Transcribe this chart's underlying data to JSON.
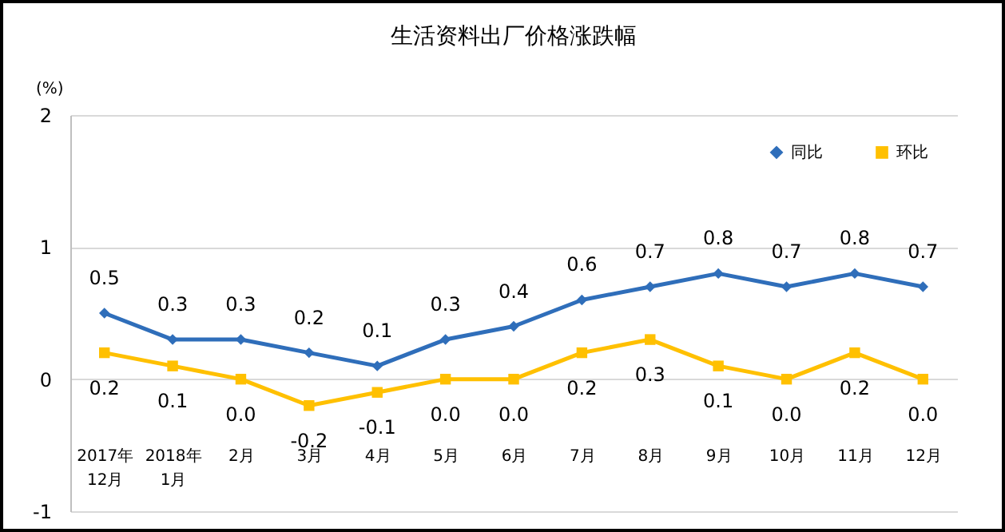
{
  "chart_data": {
    "type": "line",
    "title": "生活资料出厂价格涨跌幅",
    "ylabel": "(%)",
    "categories": [
      "2017年\n12月",
      "2018年\n1月",
      "2月",
      "3月",
      "4月",
      "5月",
      "6月",
      "7月",
      "8月",
      "9月",
      "10月",
      "11月",
      "12月"
    ],
    "series": [
      {
        "name": "同比",
        "color": "#2f6eba",
        "marker": "diamond",
        "values": [
          0.5,
          0.3,
          0.3,
          0.2,
          0.1,
          0.3,
          0.4,
          0.6,
          0.7,
          0.8,
          0.7,
          0.8,
          0.7
        ],
        "value_labels": [
          "0.5",
          "0.3",
          "0.3",
          "0.2",
          "0.1",
          "0.3",
          "0.4",
          "0.6",
          "0.7",
          "0.8",
          "0.7",
          "0.8",
          "0.7"
        ]
      },
      {
        "name": "环比",
        "color": "#ffc000",
        "marker": "square",
        "values": [
          0.2,
          0.1,
          0.0,
          -0.2,
          -0.1,
          0.0,
          0.0,
          0.2,
          0.3,
          0.1,
          0.0,
          0.2,
          0.0
        ],
        "value_labels": [
          "0.2",
          "0.1",
          "0.0",
          "-0.2",
          "-0.1",
          "0.0",
          "0.0",
          "0.2",
          "0.3",
          "0.1",
          "0.0",
          "0.2",
          "0.0"
        ]
      }
    ],
    "ylim": [
      -1,
      2
    ],
    "yticks": [
      -1,
      0,
      1,
      2
    ],
    "grid": "y",
    "legend": "top right",
    "line_style": "solid"
  }
}
